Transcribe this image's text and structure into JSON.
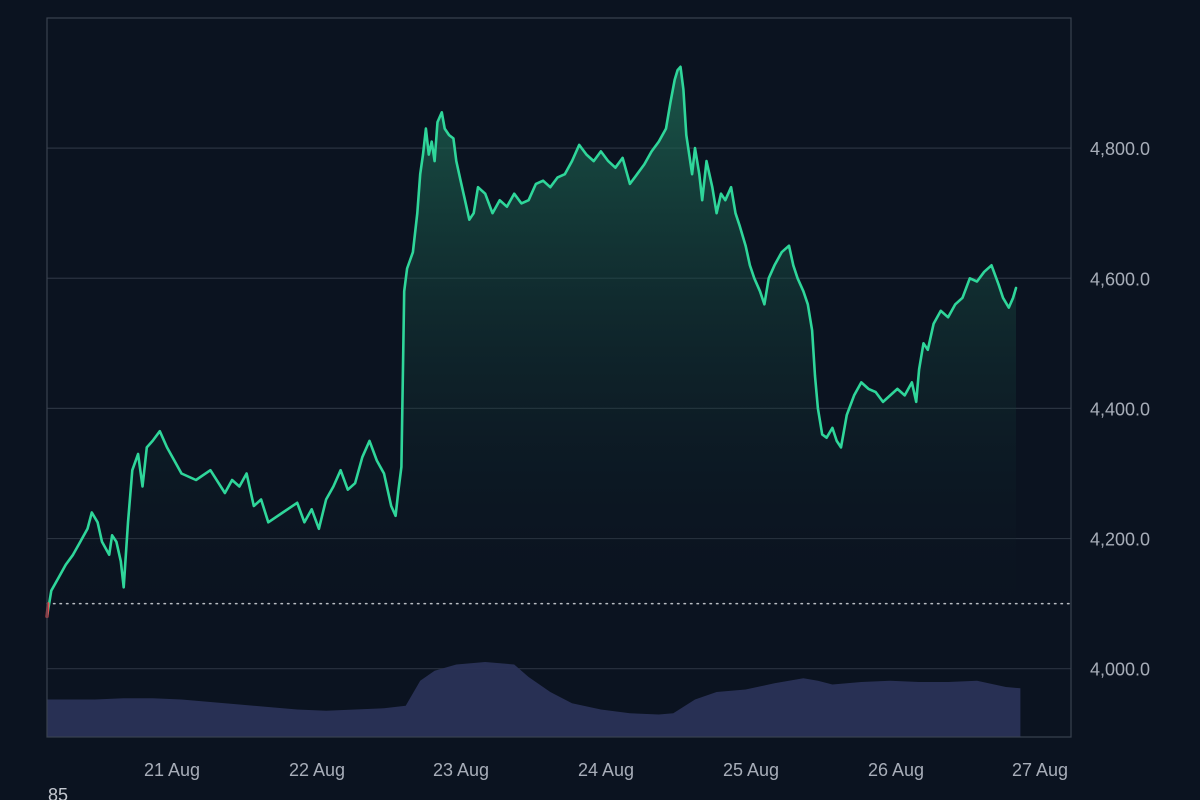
{
  "chart_data": {
    "type": "area",
    "x_tick_labels": [
      "21 Aug",
      "22 Aug",
      "23 Aug",
      "24 Aug",
      "25 Aug",
      "26 Aug",
      "27 Aug"
    ],
    "y_tick_values": [
      4000,
      4200,
      4400,
      4600,
      4800
    ],
    "y_tick_labels": [
      "4,000.0",
      "4,200.0",
      "4,400.0",
      "4,600.0",
      "4,800.0"
    ],
    "ylim": [
      3895,
      5000
    ],
    "xlim_days": [
      20.27,
      27.35
    ],
    "reference_value": 4100,
    "bottom_corner_label": "85",
    "grid": true,
    "colors": {
      "background": "#0b1320",
      "grid": "#2a3340",
      "line": "#2fd69a",
      "line_start_down": "#e5484d",
      "fill_top": "#1f6e57",
      "fill_bottom": "#0b1320",
      "volume": "#2a3157",
      "axis_border": "#3a4250",
      "reference_line": "#d8dbe0"
    },
    "series": [
      {
        "kind": "price",
        "points": [
          [
            20.27,
            4080
          ],
          [
            20.3,
            4120
          ],
          [
            20.35,
            4140
          ],
          [
            20.4,
            4160
          ],
          [
            20.45,
            4175
          ],
          [
            20.5,
            4195
          ],
          [
            20.55,
            4215
          ],
          [
            20.58,
            4240
          ],
          [
            20.62,
            4225
          ],
          [
            20.65,
            4195
          ],
          [
            20.7,
            4175
          ],
          [
            20.72,
            4205
          ],
          [
            20.75,
            4195
          ],
          [
            20.78,
            4165
          ],
          [
            20.8,
            4125
          ],
          [
            20.83,
            4225
          ],
          [
            20.86,
            4305
          ],
          [
            20.9,
            4330
          ],
          [
            20.93,
            4280
          ],
          [
            20.96,
            4340
          ],
          [
            21.0,
            4350
          ],
          [
            21.05,
            4365
          ],
          [
            21.1,
            4340
          ],
          [
            21.15,
            4320
          ],
          [
            21.2,
            4300
          ],
          [
            21.3,
            4290
          ],
          [
            21.4,
            4305
          ],
          [
            21.5,
            4270
          ],
          [
            21.55,
            4290
          ],
          [
            21.6,
            4280
          ],
          [
            21.65,
            4300
          ],
          [
            21.7,
            4250
          ],
          [
            21.75,
            4260
          ],
          [
            21.8,
            4225
          ],
          [
            21.9,
            4240
          ],
          [
            22.0,
            4255
          ],
          [
            22.05,
            4225
          ],
          [
            22.1,
            4245
          ],
          [
            22.15,
            4215
          ],
          [
            22.2,
            4260
          ],
          [
            22.25,
            4280
          ],
          [
            22.3,
            4305
          ],
          [
            22.35,
            4275
          ],
          [
            22.4,
            4285
          ],
          [
            22.45,
            4325
          ],
          [
            22.5,
            4350
          ],
          [
            22.55,
            4320
          ],
          [
            22.6,
            4300
          ],
          [
            22.65,
            4250
          ],
          [
            22.68,
            4235
          ],
          [
            22.7,
            4275
          ],
          [
            22.72,
            4310
          ],
          [
            22.74,
            4580
          ],
          [
            22.76,
            4615
          ],
          [
            22.8,
            4640
          ],
          [
            22.83,
            4700
          ],
          [
            22.85,
            4760
          ],
          [
            22.87,
            4790
          ],
          [
            22.89,
            4830
          ],
          [
            22.91,
            4790
          ],
          [
            22.93,
            4810
          ],
          [
            22.95,
            4780
          ],
          [
            22.97,
            4840
          ],
          [
            23.0,
            4855
          ],
          [
            23.02,
            4830
          ],
          [
            23.05,
            4820
          ],
          [
            23.08,
            4815
          ],
          [
            23.1,
            4780
          ],
          [
            23.13,
            4750
          ],
          [
            23.16,
            4720
          ],
          [
            23.19,
            4690
          ],
          [
            23.22,
            4700
          ],
          [
            23.25,
            4740
          ],
          [
            23.3,
            4730
          ],
          [
            23.35,
            4700
          ],
          [
            23.4,
            4720
          ],
          [
            23.45,
            4710
          ],
          [
            23.5,
            4730
          ],
          [
            23.55,
            4715
          ],
          [
            23.6,
            4720
          ],
          [
            23.65,
            4745
          ],
          [
            23.7,
            4750
          ],
          [
            23.75,
            4740
          ],
          [
            23.8,
            4755
          ],
          [
            23.85,
            4760
          ],
          [
            23.9,
            4780
          ],
          [
            23.95,
            4805
          ],
          [
            24.0,
            4790
          ],
          [
            24.05,
            4780
          ],
          [
            24.1,
            4795
          ],
          [
            24.15,
            4780
          ],
          [
            24.2,
            4770
          ],
          [
            24.25,
            4785
          ],
          [
            24.3,
            4745
          ],
          [
            24.35,
            4760
          ],
          [
            24.4,
            4775
          ],
          [
            24.45,
            4795
          ],
          [
            24.5,
            4810
          ],
          [
            24.55,
            4830
          ],
          [
            24.58,
            4870
          ],
          [
            24.61,
            4905
          ],
          [
            24.63,
            4920
          ],
          [
            24.65,
            4925
          ],
          [
            24.67,
            4890
          ],
          [
            24.69,
            4820
          ],
          [
            24.71,
            4790
          ],
          [
            24.73,
            4760
          ],
          [
            24.75,
            4800
          ],
          [
            24.78,
            4760
          ],
          [
            24.8,
            4720
          ],
          [
            24.83,
            4780
          ],
          [
            24.87,
            4740
          ],
          [
            24.9,
            4700
          ],
          [
            24.93,
            4730
          ],
          [
            24.96,
            4720
          ],
          [
            25.0,
            4740
          ],
          [
            25.03,
            4700
          ],
          [
            25.06,
            4680
          ],
          [
            25.1,
            4650
          ],
          [
            25.13,
            4620
          ],
          [
            25.16,
            4600
          ],
          [
            25.2,
            4580
          ],
          [
            25.23,
            4560
          ],
          [
            25.26,
            4600
          ],
          [
            25.3,
            4620
          ],
          [
            25.35,
            4640
          ],
          [
            25.4,
            4650
          ],
          [
            25.43,
            4620
          ],
          [
            25.46,
            4600
          ],
          [
            25.5,
            4580
          ],
          [
            25.53,
            4560
          ],
          [
            25.56,
            4520
          ],
          [
            25.58,
            4450
          ],
          [
            25.6,
            4400
          ],
          [
            25.63,
            4360
          ],
          [
            25.66,
            4355
          ],
          [
            25.7,
            4370
          ],
          [
            25.73,
            4350
          ],
          [
            25.76,
            4340
          ],
          [
            25.8,
            4390
          ],
          [
            25.85,
            4420
          ],
          [
            25.9,
            4440
          ],
          [
            25.95,
            4430
          ],
          [
            26.0,
            4425
          ],
          [
            26.05,
            4410
          ],
          [
            26.1,
            4420
          ],
          [
            26.15,
            4430
          ],
          [
            26.2,
            4420
          ],
          [
            26.25,
            4440
          ],
          [
            26.28,
            4410
          ],
          [
            26.3,
            4460
          ],
          [
            26.33,
            4500
          ],
          [
            26.36,
            4490
          ],
          [
            26.4,
            4530
          ],
          [
            26.45,
            4550
          ],
          [
            26.5,
            4540
          ],
          [
            26.55,
            4560
          ],
          [
            26.6,
            4570
          ],
          [
            26.65,
            4600
          ],
          [
            26.7,
            4595
          ],
          [
            26.75,
            4610
          ],
          [
            26.8,
            4620
          ],
          [
            26.85,
            4590
          ],
          [
            26.88,
            4570
          ],
          [
            26.92,
            4555
          ],
          [
            26.95,
            4570
          ],
          [
            26.97,
            4585
          ]
        ]
      },
      {
        "kind": "volume",
        "points": [
          [
            20.27,
            0.3
          ],
          [
            20.4,
            0.3
          ],
          [
            20.6,
            0.3
          ],
          [
            20.8,
            0.31
          ],
          [
            21.0,
            0.31
          ],
          [
            21.2,
            0.3
          ],
          [
            21.4,
            0.28
          ],
          [
            21.6,
            0.26
          ],
          [
            21.8,
            0.24
          ],
          [
            22.0,
            0.22
          ],
          [
            22.2,
            0.21
          ],
          [
            22.4,
            0.22
          ],
          [
            22.6,
            0.23
          ],
          [
            22.75,
            0.25
          ],
          [
            22.85,
            0.45
          ],
          [
            22.95,
            0.53
          ],
          [
            23.1,
            0.58
          ],
          [
            23.3,
            0.6
          ],
          [
            23.5,
            0.58
          ],
          [
            23.6,
            0.48
          ],
          [
            23.75,
            0.36
          ],
          [
            23.9,
            0.27
          ],
          [
            24.1,
            0.22
          ],
          [
            24.3,
            0.19
          ],
          [
            24.5,
            0.18
          ],
          [
            24.6,
            0.19
          ],
          [
            24.75,
            0.3
          ],
          [
            24.9,
            0.36
          ],
          [
            25.1,
            0.38
          ],
          [
            25.3,
            0.43
          ],
          [
            25.5,
            0.47
          ],
          [
            25.6,
            0.45
          ],
          [
            25.7,
            0.42
          ],
          [
            25.9,
            0.44
          ],
          [
            26.1,
            0.45
          ],
          [
            26.3,
            0.44
          ],
          [
            26.5,
            0.44
          ],
          [
            26.7,
            0.45
          ],
          [
            26.9,
            0.4
          ],
          [
            27.0,
            0.39
          ]
        ]
      }
    ]
  }
}
